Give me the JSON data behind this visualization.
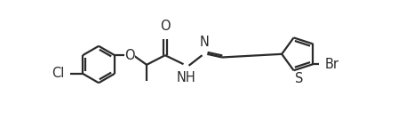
{
  "bg_color": "#ffffff",
  "line_color": "#2a2a2a",
  "bond_width": 1.6,
  "font_size": 10.5,
  "figsize": [
    4.66,
    1.35
  ],
  "dpi": 100,
  "xlim": [
    0,
    10.0
  ],
  "ylim": [
    -1.8,
    2.2
  ]
}
